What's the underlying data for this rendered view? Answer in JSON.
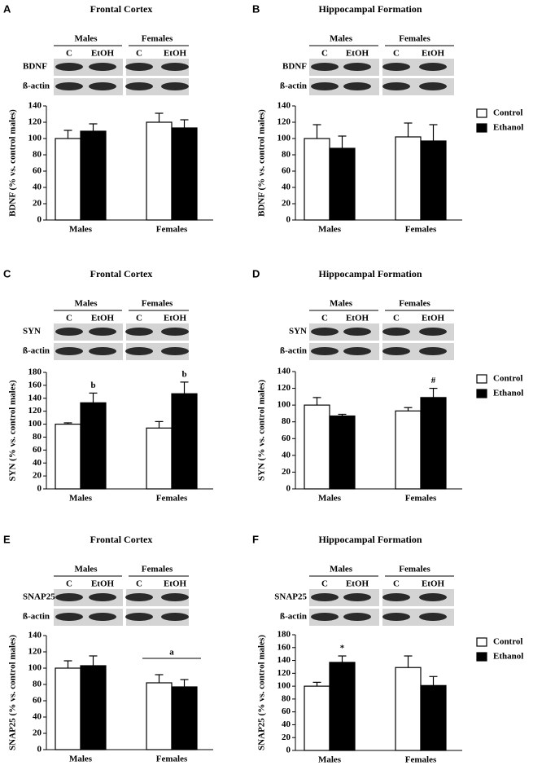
{
  "chart_data": [
    {
      "type": "bar",
      "panel": "A",
      "title": "Frontal Cortex",
      "ylabel": "BDNF (% vs. control males)",
      "blot": {
        "groups": [
          "Males",
          "Females"
        ],
        "lanes": [
          "C",
          "EtOH",
          "C",
          "EtOH"
        ],
        "rows": [
          "BDNF",
          "ß-actin"
        ]
      },
      "categories": [
        "Males",
        "Females"
      ],
      "series": [
        {
          "color": "#ffffff",
          "values": [
            100,
            120
          ],
          "errors": [
            10,
            11
          ]
        },
        {
          "color": "#000000",
          "values": [
            109,
            113
          ],
          "errors": [
            9,
            10
          ]
        }
      ],
      "ylim": [
        0,
        140
      ],
      "yticks": [
        0,
        20,
        40,
        60,
        80,
        100,
        120,
        140
      ]
    },
    {
      "type": "bar",
      "panel": "B",
      "title": "Hippocampal Formation",
      "ylabel": "BDNF (% vs. control males)",
      "blot": {
        "groups": [
          "Males",
          "Females"
        ],
        "lanes": [
          "C",
          "EtOH",
          "C",
          "EtOH"
        ],
        "rows": [
          "BDNF",
          "ß-actin"
        ]
      },
      "categories": [
        "Males",
        "Females"
      ],
      "series": [
        {
          "name": "Control",
          "color": "#ffffff",
          "values": [
            100,
            102
          ],
          "errors": [
            17,
            17
          ]
        },
        {
          "name": "Ethanol",
          "color": "#000000",
          "values": [
            88,
            97
          ],
          "errors": [
            15,
            20
          ]
        }
      ],
      "ylim": [
        0,
        140
      ],
      "yticks": [
        0,
        20,
        40,
        60,
        80,
        100,
        120,
        140
      ],
      "legend": "right"
    },
    {
      "type": "bar",
      "panel": "C",
      "title": "Frontal Cortex",
      "ylabel": "SYN (% vs. control males)",
      "blot": {
        "groups": [
          "Males",
          "Females"
        ],
        "lanes": [
          "C",
          "EtOH",
          "C",
          "EtOH"
        ],
        "rows": [
          "SYN",
          "ß-actin"
        ]
      },
      "categories": [
        "Males",
        "Females"
      ],
      "series": [
        {
          "color": "#ffffff",
          "values": [
            100,
            94
          ],
          "errors": [
            2,
            10
          ]
        },
        {
          "color": "#000000",
          "values": [
            133,
            147
          ],
          "errors": [
            15,
            18
          ]
        }
      ],
      "annotations": [
        {
          "text": "b",
          "series": 1,
          "index": 0
        },
        {
          "text": "b",
          "series": 1,
          "index": 1
        }
      ],
      "ylim": [
        0,
        180
      ],
      "yticks": [
        0,
        20,
        40,
        60,
        80,
        100,
        120,
        140,
        160,
        180
      ]
    },
    {
      "type": "bar",
      "panel": "D",
      "title": "Hippocampal Formation",
      "ylabel": "SYN (% vs. control males)",
      "blot": {
        "groups": [
          "Males",
          "Females"
        ],
        "lanes": [
          "C",
          "EtOH",
          "C",
          "EtOH"
        ],
        "rows": [
          "SYN",
          "ß-actin"
        ]
      },
      "categories": [
        "Males",
        "Females"
      ],
      "series": [
        {
          "name": "Control",
          "color": "#ffffff",
          "values": [
            100,
            93
          ],
          "errors": [
            9,
            4
          ]
        },
        {
          "name": "Ethanol",
          "color": "#000000",
          "values": [
            87,
            109
          ],
          "errors": [
            2,
            11
          ]
        }
      ],
      "annotations": [
        {
          "text": "#",
          "series": 1,
          "index": 1
        }
      ],
      "ylim": [
        0,
        140
      ],
      "yticks": [
        0,
        20,
        40,
        60,
        80,
        100,
        120,
        140
      ],
      "legend": "right"
    },
    {
      "type": "bar",
      "panel": "E",
      "title": "Frontal Cortex",
      "ylabel": "SNAP25 (% vs. control males)",
      "blot": {
        "groups": [
          "Males",
          "Females"
        ],
        "lanes": [
          "C",
          "EtOH",
          "C",
          "EtOH"
        ],
        "rows": [
          "SNAP25",
          "ß-actin"
        ]
      },
      "categories": [
        "Males",
        "Females"
      ],
      "series": [
        {
          "color": "#ffffff",
          "values": [
            100,
            82
          ],
          "errors": [
            9,
            10
          ]
        },
        {
          "color": "#000000",
          "values": [
            103,
            77
          ],
          "errors": [
            12,
            9
          ]
        }
      ],
      "annotations": [
        {
          "text": "a",
          "category": 1
        }
      ],
      "ylim": [
        0,
        140
      ],
      "yticks": [
        0,
        20,
        40,
        60,
        80,
        100,
        120,
        140
      ]
    },
    {
      "type": "bar",
      "panel": "F",
      "title": "Hippocampal Formation",
      "ylabel": "SNAP25 (% vs. control males)",
      "blot": {
        "groups": [
          "Males",
          "Females"
        ],
        "lanes": [
          "C",
          "EtOH",
          "C",
          "EtOH"
        ],
        "rows": [
          "SNAP25",
          "ß-actin"
        ]
      },
      "categories": [
        "Males",
        "Females"
      ],
      "series": [
        {
          "name": "Control",
          "color": "#ffffff",
          "values": [
            100,
            129
          ],
          "errors": [
            6,
            18
          ]
        },
        {
          "name": "Ethanol",
          "color": "#000000",
          "values": [
            137,
            101
          ],
          "errors": [
            10,
            14
          ]
        }
      ],
      "annotations": [
        {
          "text": "*",
          "series": 1,
          "index": 0
        }
      ],
      "ylim": [
        0,
        180
      ],
      "yticks": [
        0,
        20,
        40,
        60,
        80,
        100,
        120,
        140,
        160,
        180
      ],
      "legend": "right"
    }
  ]
}
